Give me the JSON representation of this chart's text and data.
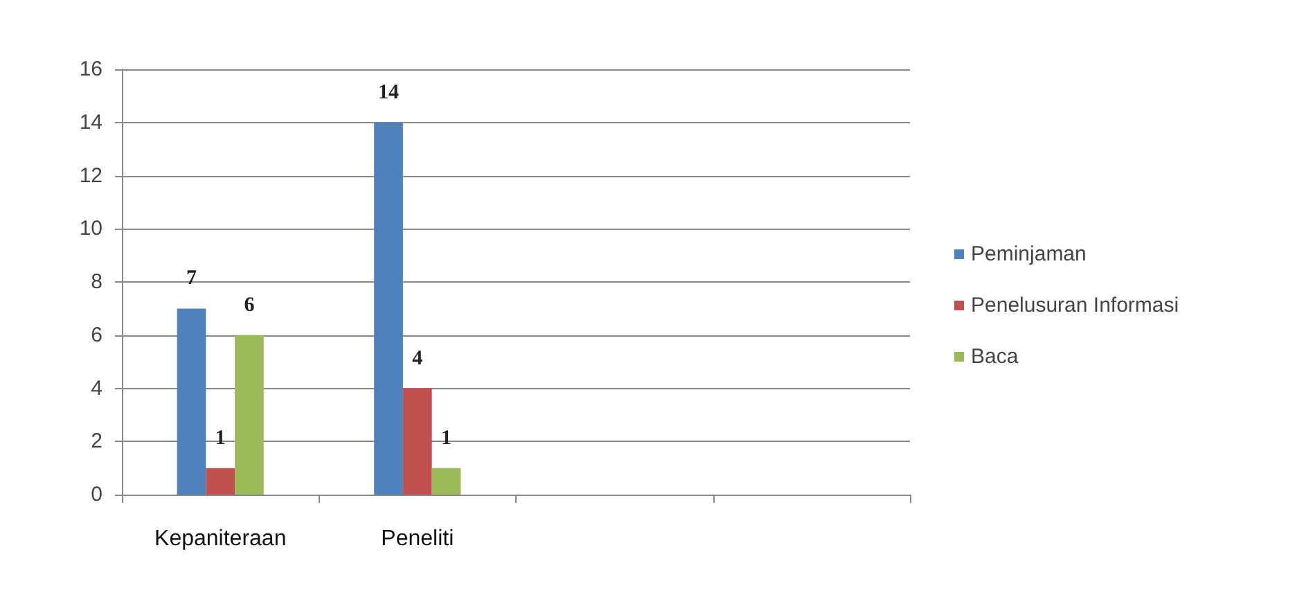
{
  "chart_data": {
    "type": "bar",
    "categories": [
      "Kepaniteraan",
      "Peneliti",
      null,
      null
    ],
    "series": [
      {
        "name": "Peminjaman",
        "color": "#4f81bd",
        "values": [
          7,
          14,
          null,
          null
        ]
      },
      {
        "name": "Penelusuran Informasi",
        "color": "#c0504d",
        "values": [
          1,
          4,
          null,
          null
        ]
      },
      {
        "name": "Baca",
        "color": "#9bbb59",
        "values": [
          6,
          1,
          null,
          null
        ]
      }
    ],
    "ylim": [
      0,
      16
    ],
    "yticks": [
      0,
      2,
      4,
      6,
      8,
      10,
      12,
      14,
      16
    ],
    "grid": "y",
    "legend": "right",
    "data_labels": true
  }
}
